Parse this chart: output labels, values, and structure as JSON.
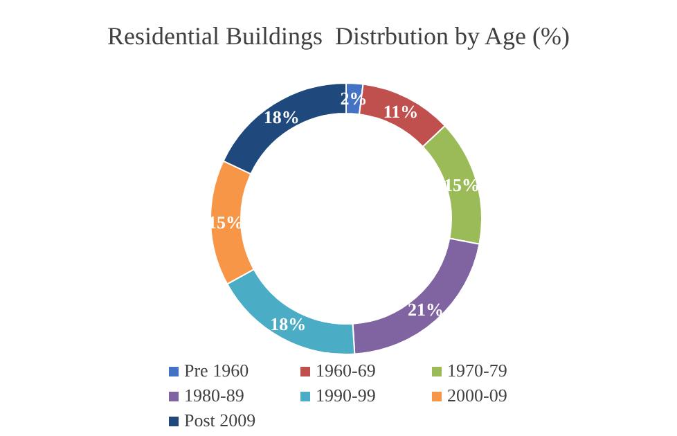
{
  "chart_data": {
    "type": "donut",
    "title": "Residential Buildings  Distrbution by Age (%)",
    "categories": [
      "Pre 1960",
      "1960-69",
      "1970-79",
      "1980-89",
      "1990-99",
      "2000-09",
      "Post 2009"
    ],
    "values": [
      2,
      11,
      15,
      21,
      18,
      15,
      18
    ],
    "colors": [
      "#4472c4",
      "#c0504d",
      "#9bbb59",
      "#8064a2",
      "#4bacc6",
      "#f79646",
      "#1f497d"
    ],
    "value_labels": [
      "2%",
      "11%",
      "15%",
      "21%",
      "18%",
      "15%",
      "18%"
    ],
    "legend": "bottom"
  }
}
